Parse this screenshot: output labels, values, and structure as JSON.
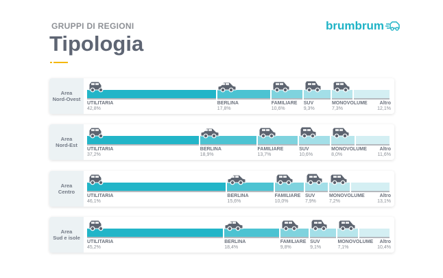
{
  "header": {
    "kicker": "GRUPPI DI REGIONI",
    "title": "Tipologia",
    "logo": "brumbrum"
  },
  "colors": {
    "accent": "#1fb3c6",
    "highlight": "#f5b700",
    "car": "#5d6470",
    "segments": [
      "#22b5c8",
      "#4cc3d2",
      "#7fd3de",
      "#a3dfe8",
      "#b8e6ec",
      "#d4eff3"
    ]
  },
  "chart_data": {
    "type": "bar",
    "stacked": true,
    "orientation": "horizontal",
    "title": "Tipologia",
    "categories": [
      "UTILITARIA",
      "BERLINA",
      "FAMILIARE",
      "SUV",
      "MONOVOLUME",
      "Altro"
    ],
    "groups": [
      {
        "label_line1": "Area",
        "label_line2": "Nord-Ovest",
        "values": [
          42.8,
          17.8,
          10.6,
          9.3,
          7.3,
          12.1
        ],
        "labels": [
          "42,8%",
          "17,8%",
          "10,6%",
          "9,3%",
          "7,3%",
          "12,1%"
        ]
      },
      {
        "label_line1": "Area",
        "label_line2": "Nord-Est",
        "values": [
          37.2,
          18.9,
          13.7,
          10.6,
          8.0,
          11.6
        ],
        "labels": [
          "37,2%",
          "18,9%",
          "13,7%",
          "10,6%",
          "8,0%",
          "11,6%"
        ]
      },
      {
        "label_line1": "Area",
        "label_line2": "Centro",
        "values": [
          46.1,
          15.6,
          10.0,
          7.9,
          7.2,
          13.1
        ],
        "labels": [
          "46,1%",
          "15,6%",
          "10,0%",
          "7,9%",
          "7,2%",
          "13,1%"
        ]
      },
      {
        "label_line1": "Area",
        "label_line2": "Sud e isole",
        "values": [
          45.2,
          18.4,
          9.8,
          9.1,
          7.1,
          10.4
        ],
        "labels": [
          "45,2%",
          "18,4%",
          "9,8%",
          "9,1%",
          "7,1%",
          "10,4%"
        ]
      }
    ],
    "icons": [
      "utilitaria-car-icon",
      "sedan-car-icon",
      "station-wagon-car-icon",
      "suv-car-icon",
      "minivan-car-icon",
      null
    ]
  }
}
